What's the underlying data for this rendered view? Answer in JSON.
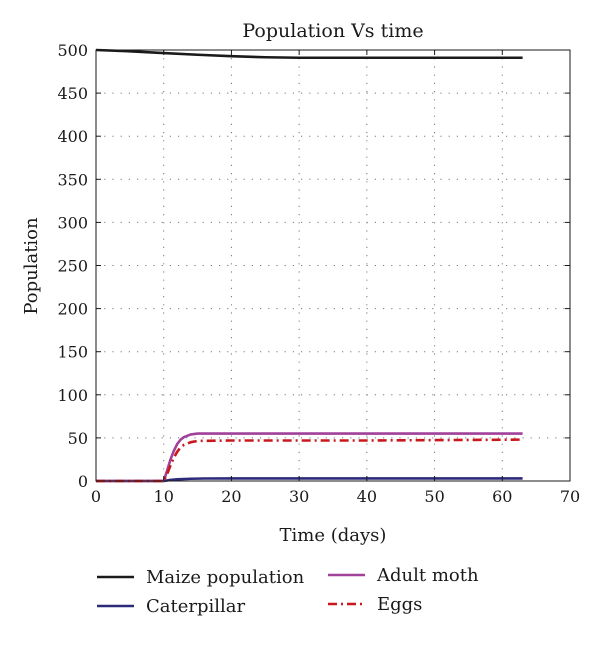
{
  "chart_data": {
    "type": "line",
    "title": "Population Vs time",
    "xlabel": "Time (days)",
    "ylabel": "Population",
    "xlim": [
      0,
      70
    ],
    "ylim": [
      0,
      500
    ],
    "xticks": [
      0,
      10,
      20,
      30,
      40,
      50,
      60,
      70
    ],
    "yticks": [
      0,
      50,
      100,
      150,
      200,
      250,
      300,
      350,
      400,
      450,
      500
    ],
    "grid": true,
    "legend_position": "bottom",
    "series": [
      {
        "name": "Maize population",
        "color": "#1a1a1a",
        "style": "solid",
        "points": [
          [
            0,
            500
          ],
          [
            5,
            498.5
          ],
          [
            10,
            496.5
          ],
          [
            15,
            494.5
          ],
          [
            20,
            492.8
          ],
          [
            25,
            491.6
          ],
          [
            30,
            491
          ],
          [
            40,
            491
          ],
          [
            50,
            491
          ],
          [
            63,
            491
          ]
        ]
      },
      {
        "name": "Caterpillar",
        "color": "#2e2a7a",
        "style": "solid",
        "points": [
          [
            0,
            0
          ],
          [
            10,
            0
          ],
          [
            11,
            1.2
          ],
          [
            12,
            2.0
          ],
          [
            14,
            2.6
          ],
          [
            16,
            2.9
          ],
          [
            20,
            3
          ],
          [
            63,
            3
          ]
        ]
      },
      {
        "name": "Adult moth",
        "color": "#a0419a",
        "style": "solid",
        "points": [
          [
            0,
            0
          ],
          [
            10,
            0
          ],
          [
            10.5,
            12
          ],
          [
            11,
            25
          ],
          [
            11.5,
            35
          ],
          [
            12,
            43
          ],
          [
            12.5,
            48
          ],
          [
            13,
            51
          ],
          [
            14,
            54
          ],
          [
            15,
            55
          ],
          [
            20,
            55
          ],
          [
            63,
            55
          ]
        ]
      },
      {
        "name": "Eggs",
        "color": "#c8181e",
        "style": "dashdot",
        "points": [
          [
            0,
            0
          ],
          [
            10,
            0
          ],
          [
            10.5,
            8
          ],
          [
            11,
            18
          ],
          [
            11.5,
            27
          ],
          [
            12,
            34
          ],
          [
            12.5,
            39
          ],
          [
            13,
            42
          ],
          [
            14,
            45
          ],
          [
            15,
            46.5
          ],
          [
            20,
            47
          ],
          [
            40,
            47
          ],
          [
            63,
            48
          ]
        ]
      }
    ]
  }
}
